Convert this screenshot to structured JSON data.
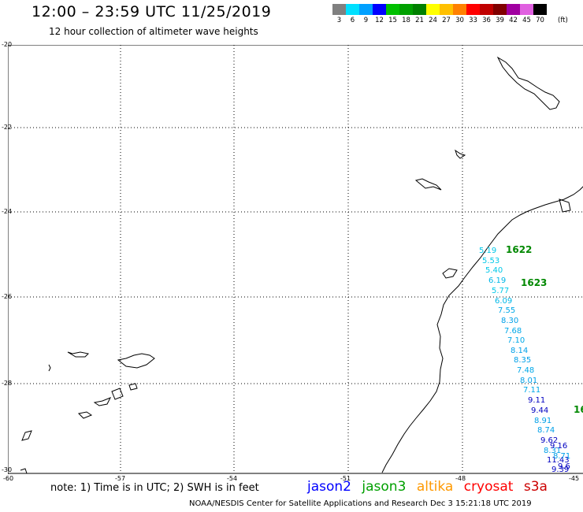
{
  "title": "12:00 – 23:59 UTC 11/25/2019",
  "subtitle": "12 hour collection of altimeter wave heights",
  "legend": {
    "labels": [
      "3",
      "6",
      "9",
      "12",
      "15",
      "18",
      "21",
      "24",
      "27",
      "30",
      "33",
      "36",
      "39",
      "42",
      "45",
      "70"
    ],
    "unit": "(ft)",
    "colors": [
      "#808080",
      "#00e0ff",
      "#00a0ff",
      "#0000ff",
      "#00c000",
      "#00a000",
      "#008000",
      "#ffff00",
      "#ffc000",
      "#ff8000",
      "#ff0000",
      "#c00000",
      "#800000",
      "#a000a0",
      "#e060e0",
      "#000000"
    ]
  },
  "axes": {
    "lat_labels": [
      "-20",
      "-22",
      "-24",
      "-26",
      "-28",
      "-30"
    ],
    "lon_labels": [
      "-60",
      "-57",
      "-54",
      "-51",
      "-48",
      "-45"
    ]
  },
  "passes": [
    {
      "label": "1622"
    },
    {
      "label": "1623"
    },
    {
      "label": "16"
    }
  ],
  "wave_values": [
    {
      "text": "5.19",
      "color": "#00c8e8"
    },
    {
      "text": "5.53",
      "color": "#00c8e8"
    },
    {
      "text": "5.40",
      "color": "#00c8e8"
    },
    {
      "text": "6.19",
      "color": "#00b8e8"
    },
    {
      "text": "5.77",
      "color": "#00c8e8"
    },
    {
      "text": "6.09",
      "color": "#00b8e8"
    },
    {
      "text": "7.55",
      "color": "#00a8e8"
    },
    {
      "text": "8.30",
      "color": "#00a0e8"
    },
    {
      "text": "7.68",
      "color": "#00a8e8"
    },
    {
      "text": "7.10",
      "color": "#00a8e8"
    },
    {
      "text": "8.14",
      "color": "#00a0e8"
    },
    {
      "text": "8.35",
      "color": "#00a0e8"
    },
    {
      "text": "7.48",
      "color": "#00a8e8"
    },
    {
      "text": "8.01",
      "color": "#00a0e8"
    },
    {
      "text": "7.11",
      "color": "#00a8e8"
    },
    {
      "text": "9.11",
      "color": "#0000c0"
    },
    {
      "text": "9.44",
      "color": "#0000c0"
    },
    {
      "text": "8.91",
      "color": "#00a0e8"
    },
    {
      "text": "8.74",
      "color": "#00a0e8"
    },
    {
      "text": "9.62",
      "color": "#0000c0"
    },
    {
      "text": "8.31",
      "color": "#00a0e8"
    },
    {
      "text": "11.43",
      "color": "#0000c0"
    },
    {
      "text": "9.39",
      "color": "#0000c0"
    },
    {
      "text": "9.16",
      "color": "#0000c0"
    },
    {
      "text": "8.71",
      "color": "#00a0e8"
    },
    {
      "text": "9.6",
      "color": "#0000c0"
    }
  ],
  "note": "note: 1) Time is in UTC; 2) SWH is in feet",
  "satellites": [
    {
      "name": "jason2",
      "color": "#0000ff"
    },
    {
      "name": "jason3",
      "color": "#00a000"
    },
    {
      "name": "altika",
      "color": "#ff9900"
    },
    {
      "name": "cryosat",
      "color": "#ff0000"
    },
    {
      "name": "s3a",
      "color": "#cc0000"
    }
  ],
  "footer": "NOAA/NESDIS Center for Satellite Applications and Research    Dec  3 15:21:18 UTC 2019"
}
